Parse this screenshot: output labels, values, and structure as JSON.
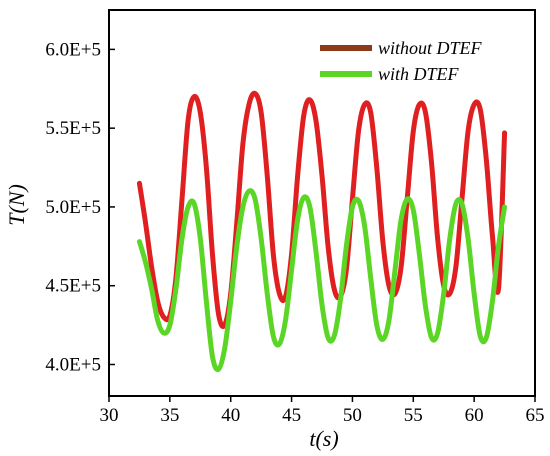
{
  "chart_data": {
    "type": "line",
    "xlabel": "t(s)",
    "ylabel": "T(N)",
    "xlim": [
      30,
      65
    ],
    "ylim": [
      380000,
      625000
    ],
    "xticks": [
      30,
      35,
      40,
      45,
      50,
      55,
      60,
      65
    ],
    "xtick_labels": [
      "30",
      "35",
      "40",
      "45",
      "50",
      "55",
      "60",
      "65"
    ],
    "yticks": [
      400000,
      450000,
      500000,
      550000,
      600000
    ],
    "ytick_labels": [
      "4.0E+5",
      "4.5E+5",
      "5.0E+5",
      "5.5E+5",
      "6.0E+5"
    ],
    "grid": false,
    "legend_position": "top-right",
    "series": [
      {
        "name": "without DTEF",
        "color": "#e02020",
        "legend_color": "#8b3a1a",
        "x": [
          32.5,
          33.0,
          33.5,
          34.0,
          34.5,
          35.0,
          35.5,
          36.0,
          36.5,
          37.0,
          37.5,
          38.0,
          38.5,
          39.0,
          39.5,
          40.0,
          40.5,
          41.0,
          41.5,
          42.0,
          42.5,
          43.0,
          43.5,
          44.0,
          44.5,
          45.0,
          45.5,
          46.0,
          46.5,
          47.0,
          47.5,
          48.0,
          48.5,
          49.0,
          49.5,
          50.0,
          50.5,
          51.0,
          51.5,
          52.0,
          52.5,
          53.0,
          53.5,
          54.0,
          54.5,
          55.0,
          55.5,
          56.0,
          56.5,
          57.0,
          57.5,
          58.0,
          58.5,
          59.0,
          59.5,
          60.0,
          60.5,
          61.0,
          61.5,
          62.0,
          62.5
        ],
        "values": [
          515000,
          490000,
          462000,
          440000,
          430000,
          431000,
          455000,
          505000,
          555000,
          570000,
          560000,
          525000,
          470000,
          432000,
          425000,
          445000,
          490000,
          540000,
          565000,
          572000,
          560000,
          520000,
          470000,
          445000,
          443000,
          470000,
          520000,
          558000,
          568000,
          555000,
          520000,
          475000,
          448000,
          443000,
          460000,
          505000,
          548000,
          565000,
          560000,
          525000,
          478000,
          450000,
          445000,
          462000,
          505000,
          548000,
          565000,
          560000,
          528000,
          480000,
          450000,
          445000,
          462000,
          505000,
          548000,
          565000,
          562000,
          530000,
          482000,
          448000,
          547000
        ]
      },
      {
        "name": "with DTEF",
        "color": "#5cd626",
        "legend_color": "#5cd626",
        "x": [
          32.5,
          33.0,
          33.5,
          34.0,
          34.5,
          35.0,
          35.5,
          36.0,
          36.5,
          37.0,
          37.5,
          38.0,
          38.5,
          39.0,
          39.5,
          40.0,
          40.5,
          41.0,
          41.5,
          42.0,
          42.5,
          43.0,
          43.5,
          44.0,
          44.5,
          45.0,
          45.5,
          46.0,
          46.5,
          47.0,
          47.5,
          48.0,
          48.5,
          49.0,
          49.5,
          50.0,
          50.5,
          51.0,
          51.5,
          52.0,
          52.5,
          53.0,
          53.5,
          54.0,
          54.5,
          55.0,
          55.5,
          56.0,
          56.5,
          57.0,
          57.5,
          58.0,
          58.5,
          59.0,
          59.5,
          60.0,
          60.5,
          61.0,
          61.5,
          62.0,
          62.5
        ],
        "values": [
          478000,
          465000,
          448000,
          428000,
          420000,
          425000,
          448000,
          480000,
          500000,
          502000,
          480000,
          440000,
          405000,
          397000,
          410000,
          440000,
          475000,
          500000,
          510000,
          505000,
          480000,
          445000,
          418000,
          413000,
          428000,
          460000,
          492000,
          506000,
          500000,
          472000,
          438000,
          417000,
          418000,
          440000,
          475000,
          500000,
          504000,
          488000,
          455000,
          425000,
          416000,
          428000,
          460000,
          492000,
          505000,
          498000,
          470000,
          437000,
          417000,
          420000,
          445000,
          480000,
          502000,
          502000,
          480000,
          445000,
          418000,
          417000,
          440000,
          475000,
          500000
        ]
      }
    ]
  }
}
